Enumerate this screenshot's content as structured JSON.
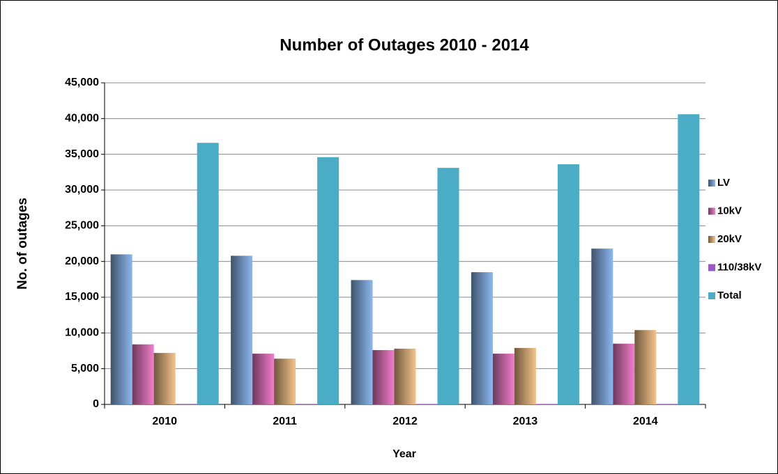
{
  "chart_data": {
    "type": "bar",
    "title": "Number of Outages 2010 - 2014",
    "x_label": "Year",
    "y_label": "No. of outages",
    "categories": [
      "2010",
      "2011",
      "2012",
      "2013",
      "2014"
    ],
    "series": [
      {
        "name": "LV",
        "color": "#8cb8ee",
        "values": [
          21000,
          20800,
          17400,
          18500,
          21800
        ]
      },
      {
        "name": "10kV",
        "color": "#f27fcb",
        "values": [
          8400,
          7100,
          7600,
          7100,
          8500
        ]
      },
      {
        "name": "20kV",
        "color": "#f5c48a",
        "values": [
          7200,
          6400,
          7800,
          7900,
          10400
        ]
      },
      {
        "name": "110/38kV",
        "color": "#9b59c6",
        "values": [
          30,
          30,
          60,
          60,
          60
        ]
      },
      {
        "name": "Total",
        "color": "#4bacc6",
        "values": [
          36600,
          34600,
          33100,
          33600,
          40600
        ]
      }
    ],
    "ylim": [
      0,
      45000
    ],
    "yticks": [
      0,
      {
        "value": 5000,
        "label": "5,000"
      },
      {
        "value": 10000,
        "label": "10,000"
      },
      {
        "value": 15000,
        "label": "15,000"
      },
      {
        "value": 20000,
        "label": "20,000"
      },
      {
        "value": 25000,
        "label": "25,000"
      },
      {
        "value": 30000,
        "label": "30,000"
      },
      {
        "value": 35000,
        "label": "35,000"
      },
      {
        "value": 40000,
        "label": "40,000"
      },
      {
        "value": 45000,
        "label": "45,000"
      }
    ],
    "grid": true,
    "legend": "right"
  }
}
